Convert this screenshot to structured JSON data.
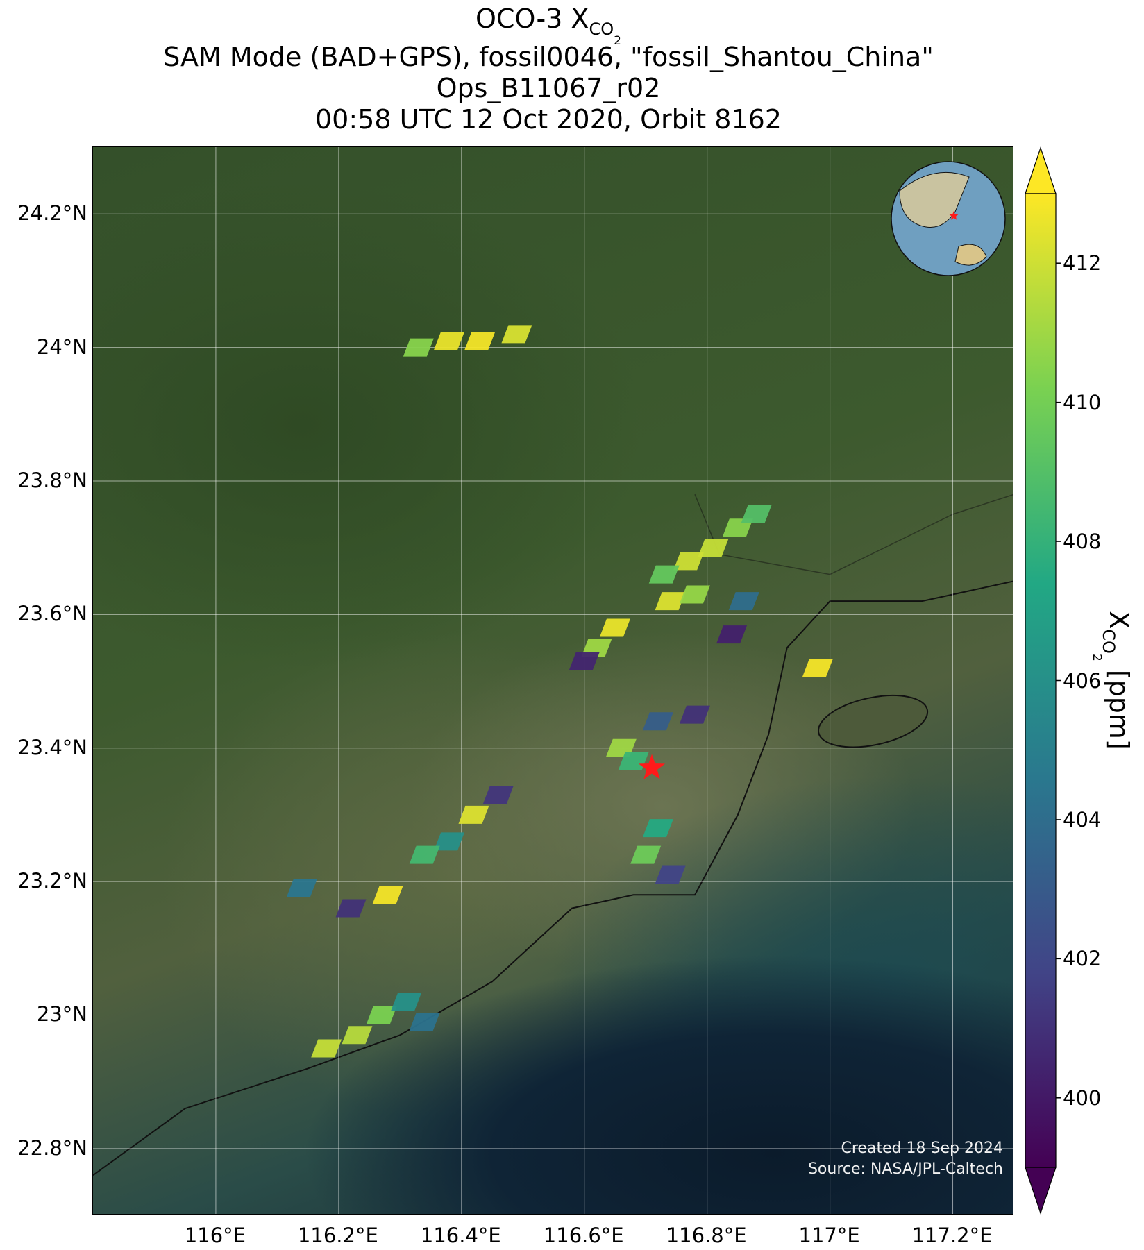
{
  "title": {
    "line1_prefix": "OCO-3 X",
    "line1_sub": "CO",
    "line1_subsub": "2",
    "line2": "SAM Mode (BAD+GPS), fossil0046, \"fossil_Shantou_China\"",
    "line3": "Ops_B11067_r02",
    "line4": "00:58 UTC 12 Oct 2020, Orbit 8162"
  },
  "map": {
    "x_ticks": [
      "116°E",
      "116.2°E",
      "116.4°E",
      "116.6°E",
      "116.8°E",
      "117°E",
      "117.2°E"
    ],
    "y_ticks": [
      "24.2°N",
      "24°N",
      "23.8°N",
      "23.6°N",
      "23.4°N",
      "23.2°N",
      "23°N",
      "22.8°N"
    ],
    "lon_range": [
      115.8,
      117.3
    ],
    "lat_range": [
      22.7,
      24.3
    ],
    "gridlines": true,
    "target_marker": "red-star",
    "target": {
      "lon": 116.71,
      "lat": 23.37
    },
    "inset": "globe-locator",
    "credit_line1": "Created 18 Sep 2024",
    "credit_line2": "Source: NASA/JPL-Caltech"
  },
  "colorbar": {
    "label_prefix": "X",
    "label_sub": "CO",
    "label_subsub": "2",
    "label_suffix": " [ppm]",
    "ticks": [
      "400",
      "402",
      "404",
      "406",
      "408",
      "410",
      "412"
    ],
    "range": [
      399,
      413
    ],
    "colormap": "viridis",
    "colors": [
      "#440154",
      "#414487",
      "#2a788e",
      "#22a884",
      "#7ad151",
      "#fde725"
    ]
  },
  "chart_data": {
    "type": "scatter",
    "title": "OCO-3 XCO2 SAM Mode (BAD+GPS), fossil0046, \"fossil_Shantou_China\" Ops_B11067_r02 00:58 UTC 12 Oct 2020, Orbit 8162",
    "xlabel": "",
    "ylabel": "",
    "value_label": "XCO2 [ppm]",
    "xlim": [
      115.8,
      117.3
    ],
    "ylim": [
      22.7,
      24.3
    ],
    "points": [
      {
        "lon": 116.33,
        "lat": 24.0,
        "xco2": 410.5
      },
      {
        "lon": 116.38,
        "lat": 24.01,
        "xco2": 412.6
      },
      {
        "lon": 116.43,
        "lat": 24.01,
        "xco2": 412.8
      },
      {
        "lon": 116.49,
        "lat": 24.02,
        "xco2": 412.2
      },
      {
        "lon": 116.85,
        "lat": 23.73,
        "xco2": 410.5
      },
      {
        "lon": 116.88,
        "lat": 23.75,
        "xco2": 409.0
      },
      {
        "lon": 116.81,
        "lat": 23.7,
        "xco2": 411.8
      },
      {
        "lon": 116.77,
        "lat": 23.68,
        "xco2": 412.0
      },
      {
        "lon": 116.73,
        "lat": 23.66,
        "xco2": 409.5
      },
      {
        "lon": 116.74,
        "lat": 23.62,
        "xco2": 412.3
      },
      {
        "lon": 116.78,
        "lat": 23.63,
        "xco2": 410.8
      },
      {
        "lon": 116.65,
        "lat": 23.58,
        "xco2": 412.6
      },
      {
        "lon": 116.62,
        "lat": 23.55,
        "xco2": 411.0
      },
      {
        "lon": 116.6,
        "lat": 23.53,
        "xco2": 400.5
      },
      {
        "lon": 116.86,
        "lat": 23.62,
        "xco2": 404.0
      },
      {
        "lon": 116.84,
        "lat": 23.57,
        "xco2": 400.3
      },
      {
        "lon": 116.98,
        "lat": 23.52,
        "xco2": 412.8
      },
      {
        "lon": 116.72,
        "lat": 23.44,
        "xco2": 403.2
      },
      {
        "lon": 116.78,
        "lat": 23.45,
        "xco2": 401.0
      },
      {
        "lon": 116.66,
        "lat": 23.4,
        "xco2": 411.0
      },
      {
        "lon": 116.68,
        "lat": 23.38,
        "xco2": 408.2
      },
      {
        "lon": 116.46,
        "lat": 23.33,
        "xco2": 401.2
      },
      {
        "lon": 116.42,
        "lat": 23.3,
        "xco2": 412.3
      },
      {
        "lon": 116.38,
        "lat": 23.26,
        "xco2": 406.0
      },
      {
        "lon": 116.34,
        "lat": 23.24,
        "xco2": 408.5
      },
      {
        "lon": 116.28,
        "lat": 23.18,
        "xco2": 412.8
      },
      {
        "lon": 116.22,
        "lat": 23.16,
        "xco2": 401.0
      },
      {
        "lon": 116.14,
        "lat": 23.19,
        "xco2": 404.5
      },
      {
        "lon": 116.72,
        "lat": 23.28,
        "xco2": 407.5
      },
      {
        "lon": 116.7,
        "lat": 23.24,
        "xco2": 409.8
      },
      {
        "lon": 116.74,
        "lat": 23.21,
        "xco2": 401.8
      },
      {
        "lon": 116.27,
        "lat": 23.0,
        "xco2": 410.2
      },
      {
        "lon": 116.23,
        "lat": 22.97,
        "xco2": 411.5
      },
      {
        "lon": 116.18,
        "lat": 22.95,
        "xco2": 411.8
      },
      {
        "lon": 116.31,
        "lat": 23.02,
        "xco2": 406.0
      },
      {
        "lon": 116.34,
        "lat": 22.99,
        "xco2": 404.3
      }
    ]
  }
}
